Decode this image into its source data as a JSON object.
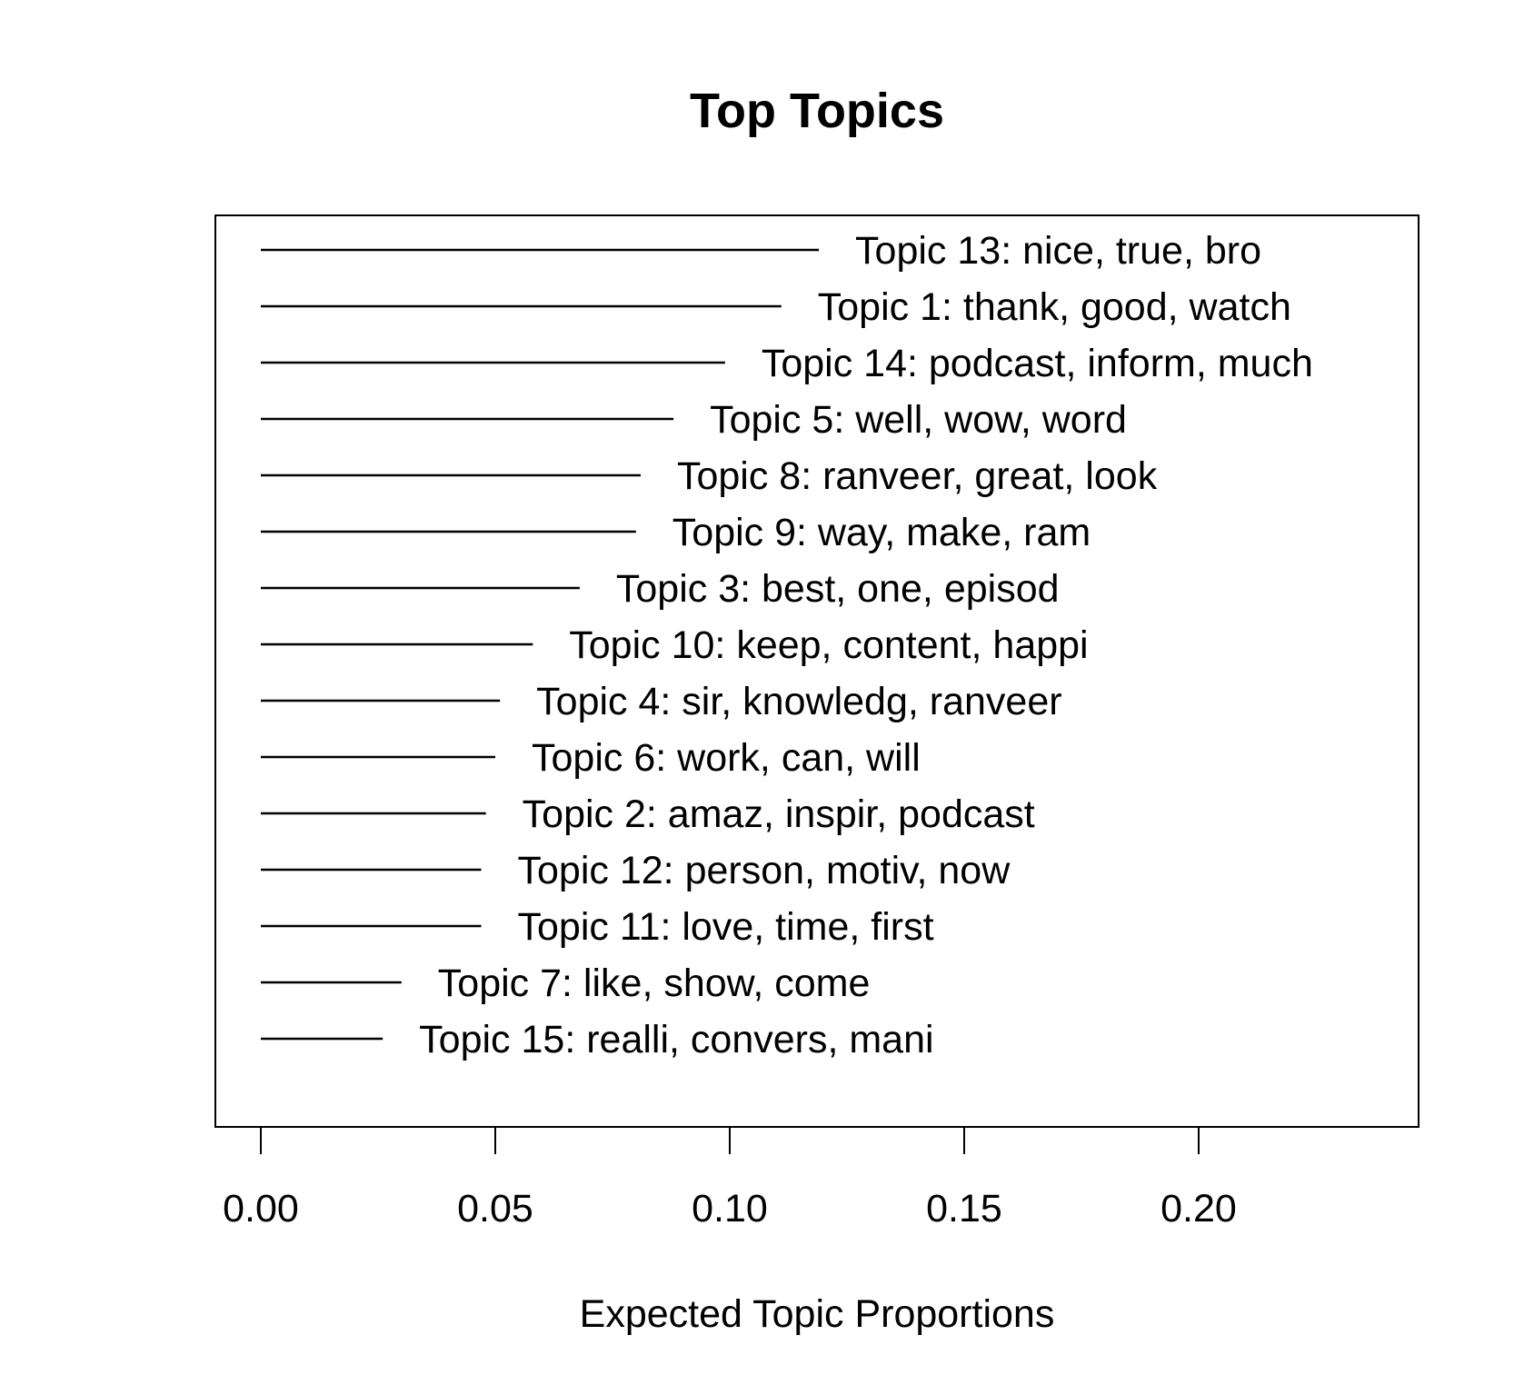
{
  "chart_data": {
    "type": "bar",
    "orientation": "horizontal",
    "style": "line-segments",
    "title": "Top Topics",
    "xlabel": "Expected Topic Proportions",
    "ylabel": "",
    "xlim": [
      -0.01,
      0.247
    ],
    "x_ticks": [
      "0.00",
      "0.05",
      "0.10",
      "0.15",
      "0.20"
    ],
    "x_tick_values": [
      0.0,
      0.05,
      0.1,
      0.15,
      0.2
    ],
    "grid": false,
    "legend": "none",
    "categories": [
      "Topic 13: nice, true, bro",
      "Topic 1: thank, good, watch",
      "Topic 14: podcast, inform, much",
      "Topic 5: well, wow, word",
      "Topic 8: ranveer, great, look",
      "Topic 9: way, make, ram",
      "Topic 3: best, one, episod",
      "Topic 10: keep, content, happi",
      "Topic 4: sir, knowledg, ranveer",
      "Topic 6: work, can, will",
      "Topic 2: amaz, inspir, podcast",
      "Topic 12: person, motiv, now",
      "Topic 11: love, time, first",
      "Topic 7: like, show, come",
      "Topic 15: realli, convers, mani"
    ],
    "values": [
      0.119,
      0.111,
      0.099,
      0.088,
      0.081,
      0.08,
      0.068,
      0.058,
      0.051,
      0.05,
      0.048,
      0.047,
      0.047,
      0.03,
      0.026
    ],
    "colors": {
      "line": "#000000",
      "text": "#000000",
      "background": "#ffffff"
    }
  }
}
